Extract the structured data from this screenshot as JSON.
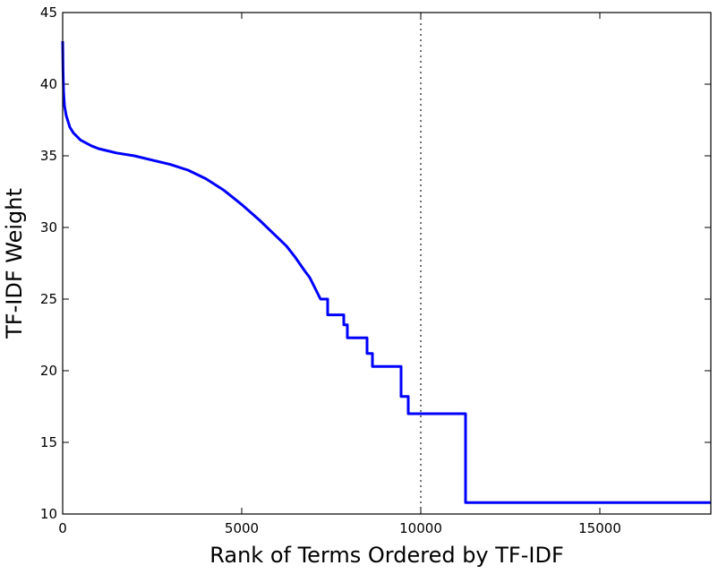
{
  "chart_data": {
    "type": "line",
    "title": "",
    "xlabel": "Rank of Terms Ordered by TF-IDF",
    "ylabel": "TF-IDF Weight",
    "xlim": [
      0,
      18100
    ],
    "ylim": [
      10,
      45
    ],
    "xticks": [
      0,
      5000,
      10000,
      15000
    ],
    "yticks": [
      10,
      15,
      20,
      25,
      30,
      35,
      40,
      45
    ],
    "grid": false,
    "legend": "none",
    "reference_line": {
      "x": 10000,
      "style": "dotted"
    },
    "series": [
      {
        "color": "#0000ff",
        "points": [
          [
            0,
            43.0
          ],
          [
            10,
            41.0
          ],
          [
            25,
            39.5
          ],
          [
            50,
            38.5
          ],
          [
            100,
            37.8
          ],
          [
            200,
            37.0
          ],
          [
            300,
            36.6
          ],
          [
            500,
            36.1
          ],
          [
            800,
            35.7
          ],
          [
            1000,
            35.5
          ],
          [
            1500,
            35.2
          ],
          [
            2000,
            35.0
          ],
          [
            2500,
            34.7
          ],
          [
            3000,
            34.4
          ],
          [
            3500,
            34.0
          ],
          [
            4000,
            33.4
          ],
          [
            4500,
            32.6
          ],
          [
            5000,
            31.6
          ],
          [
            5500,
            30.5
          ],
          [
            6000,
            29.3
          ],
          [
            6250,
            28.7
          ],
          [
            6500,
            27.9
          ],
          [
            6750,
            27.0
          ],
          [
            6900,
            26.5
          ],
          [
            7000,
            26.0
          ],
          [
            7200,
            25.0
          ],
          [
            7400,
            25.0
          ],
          [
            7400,
            23.9
          ],
          [
            7850,
            23.9
          ],
          [
            7850,
            23.2
          ],
          [
            7950,
            23.2
          ],
          [
            7950,
            22.3
          ],
          [
            8500,
            22.3
          ],
          [
            8500,
            21.2
          ],
          [
            8650,
            21.2
          ],
          [
            8650,
            20.3
          ],
          [
            9450,
            20.3
          ],
          [
            9450,
            18.2
          ],
          [
            9650,
            18.2
          ],
          [
            9650,
            17.0
          ],
          [
            11250,
            17.0
          ],
          [
            11250,
            10.8
          ],
          [
            18100,
            10.8
          ]
        ]
      }
    ]
  }
}
